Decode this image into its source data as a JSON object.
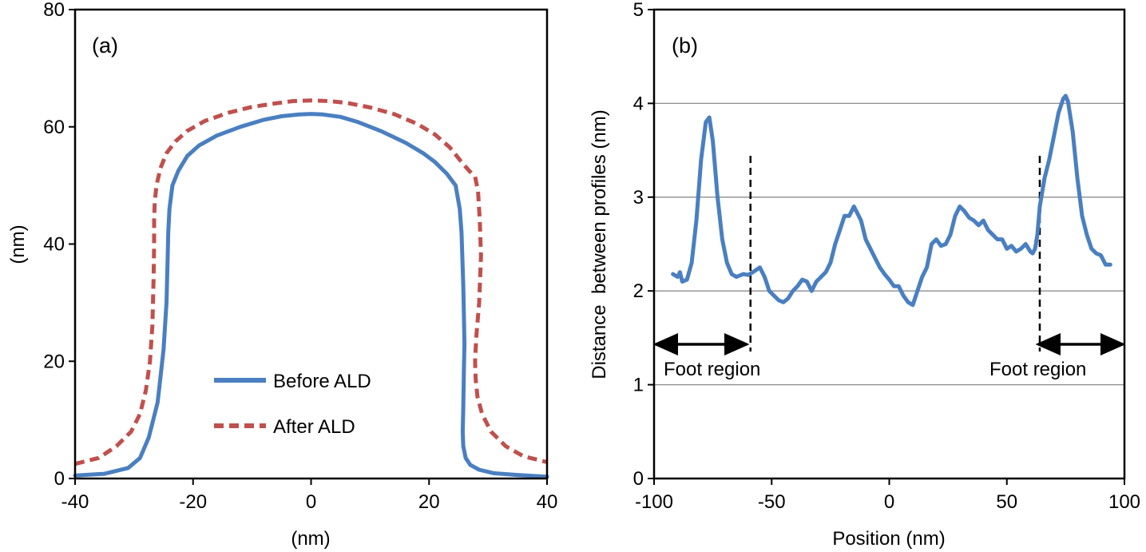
{
  "chart_data": [
    {
      "type": "line",
      "panel_label": "(a)",
      "title": "",
      "xlabel": "(nm)",
      "ylabel": "(nm)",
      "xlim": [
        -40,
        40
      ],
      "ylim": [
        0,
        80
      ],
      "xticks": [
        -40,
        -20,
        0,
        20,
        40
      ],
      "yticks": [
        0,
        20,
        40,
        60,
        80
      ],
      "grid": false,
      "legend_position": "bottom-center",
      "series": [
        {
          "name": "Before ALD",
          "color": "#4a7fc1",
          "style": "solid",
          "x": [
            -40,
            -35,
            -31,
            -29,
            -27.5,
            -26,
            -25,
            -24.5,
            -24.3,
            -24.2,
            -24,
            -23.5,
            -22.5,
            -21,
            -19,
            -16,
            -12,
            -8,
            -5,
            -2,
            0,
            2,
            5,
            8,
            12,
            16,
            19,
            21,
            23,
            24.5,
            25.2,
            25.5,
            25.8,
            26.0,
            25.9,
            25.8,
            25.7,
            25.8,
            26.2,
            27,
            28.5,
            31,
            35,
            40
          ],
          "y": [
            0.5,
            0.8,
            1.8,
            3.5,
            7,
            13,
            22,
            30,
            38,
            42,
            46,
            50,
            52.5,
            55,
            56.8,
            58.5,
            60,
            61.2,
            61.8,
            62.1,
            62.2,
            62.1,
            61.7,
            60.8,
            59.2,
            57.3,
            55.5,
            54,
            52,
            50,
            46,
            42,
            33,
            23,
            18,
            12,
            8,
            5.5,
            3.5,
            2.3,
            1.5,
            0.9,
            0.6,
            0.3
          ]
        },
        {
          "name": "After ALD",
          "color": "#c0504d",
          "style": "dashed",
          "x": [
            -40,
            -36,
            -33,
            -30.5,
            -29,
            -28,
            -27.3,
            -26.9,
            -26.7,
            -26.6,
            -26.6,
            -26.5,
            -26.2,
            -25.5,
            -24.5,
            -23,
            -21,
            -18,
            -14,
            -10,
            -6,
            -3,
            0,
            3,
            6,
            10,
            14,
            18,
            21,
            23.5,
            25.5,
            26.8,
            27.8,
            28.3,
            28.6,
            28.8,
            28.5,
            28.0,
            27.8,
            27.9,
            28.2,
            29,
            30.5,
            33,
            36,
            40
          ],
          "y": [
            2.5,
            3.5,
            5.5,
            8,
            11,
            15,
            20,
            26,
            34,
            40,
            44,
            47,
            50,
            53,
            55.5,
            57.5,
            59.3,
            61,
            62.4,
            63.4,
            64,
            64.4,
            64.5,
            64.4,
            64.1,
            63.3,
            62.2,
            60.5,
            58.7,
            56.5,
            54,
            52.5,
            51.5,
            49,
            44,
            38,
            30,
            24,
            20,
            17,
            14,
            11,
            8,
            5.5,
            3.8,
            2.8
          ]
        }
      ]
    },
    {
      "type": "line",
      "panel_label": "(b)",
      "title": "",
      "xlabel": "Position (nm)",
      "ylabel": "Distance  between profiles (nm)",
      "xlim": [
        -100,
        100
      ],
      "ylim": [
        0,
        5
      ],
      "xticks": [
        -100,
        -50,
        0,
        50,
        100
      ],
      "yticks": [
        0,
        1,
        2,
        3,
        4,
        5
      ],
      "grid": true,
      "series": [
        {
          "name": "Distance between profiles",
          "color": "#4a7fc1",
          "style": "solid",
          "x": [
            -92,
            -90,
            -89,
            -88,
            -86,
            -84,
            -82,
            -80,
            -78,
            -76.5,
            -75,
            -73,
            -71,
            -69,
            -67,
            -65,
            -62,
            -60,
            -58,
            -55,
            -53,
            -51,
            -49,
            -47,
            -45,
            -43,
            -41,
            -39,
            -37,
            -35,
            -33,
            -31,
            -29,
            -27,
            -25,
            -23,
            -21,
            -19,
            -17,
            -15,
            -14,
            -12,
            -10,
            -8,
            -6,
            -4,
            -2,
            0,
            2,
            4,
            6,
            8,
            10,
            12,
            14,
            16,
            18,
            20,
            22,
            24,
            26,
            28,
            30,
            32,
            34,
            36,
            38,
            40,
            42,
            44,
            46,
            48,
            50,
            52,
            54,
            56,
            58,
            60,
            61,
            62,
            63,
            64,
            66,
            68,
            70,
            72,
            74,
            75,
            76,
            78,
            80,
            82,
            84,
            86,
            88,
            90,
            92,
            94
          ],
          "y": [
            2.18,
            2.15,
            2.2,
            2.1,
            2.12,
            2.3,
            2.75,
            3.4,
            3.8,
            3.85,
            3.6,
            3.0,
            2.55,
            2.3,
            2.18,
            2.15,
            2.18,
            2.17,
            2.2,
            2.25,
            2.15,
            2.0,
            1.95,
            1.9,
            1.88,
            1.92,
            2.0,
            2.05,
            2.12,
            2.1,
            2.0,
            2.1,
            2.15,
            2.2,
            2.3,
            2.5,
            2.65,
            2.8,
            2.8,
            2.9,
            2.85,
            2.75,
            2.55,
            2.45,
            2.35,
            2.25,
            2.18,
            2.12,
            2.05,
            2.05,
            1.95,
            1.88,
            1.85,
            2.0,
            2.15,
            2.25,
            2.5,
            2.55,
            2.48,
            2.5,
            2.6,
            2.8,
            2.9,
            2.85,
            2.78,
            2.75,
            2.7,
            2.75,
            2.65,
            2.6,
            2.55,
            2.55,
            2.45,
            2.48,
            2.42,
            2.45,
            2.5,
            2.42,
            2.4,
            2.45,
            2.6,
            2.9,
            3.2,
            3.4,
            3.65,
            3.9,
            4.05,
            4.08,
            4.02,
            3.7,
            3.2,
            2.8,
            2.6,
            2.45,
            2.4,
            2.38,
            2.28,
            2.28
          ]
        }
      ],
      "dashed_markers_x": [
        -59,
        64
      ],
      "annotations": [
        {
          "text": "Foot region",
          "from": -100,
          "to": -59
        },
        {
          "text": "Foot region",
          "from": 64,
          "to": 100
        }
      ]
    }
  ]
}
